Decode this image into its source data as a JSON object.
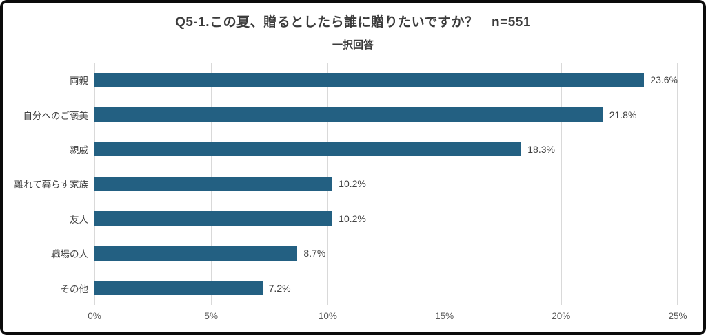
{
  "header": {
    "title": "Q5-1.この夏、贈るとしたら誰に贈りたいですか？　n=551",
    "subtitle": "一択回答"
  },
  "chart_data": {
    "type": "bar",
    "orientation": "horizontal",
    "title": "Q5-1.この夏、贈るとしたら誰に贈りたいですか？　n=551",
    "subtitle": "一択回答",
    "sample_size": "n=551",
    "categories": [
      "両親",
      "自分へのご褒美",
      "親戚",
      "離れて暮らす家族",
      "友人",
      "職場の人",
      "その他"
    ],
    "values": [
      23.6,
      21.8,
      18.3,
      10.2,
      10.2,
      8.7,
      7.2
    ],
    "value_labels": [
      "23.6%",
      "21.8%",
      "18.3%",
      "10.2%",
      "10.2%",
      "8.7%",
      "7.2%"
    ],
    "xlabel": "",
    "ylabel": "",
    "xlim": [
      0,
      25
    ],
    "x_ticks": [
      "0%",
      "5%",
      "10%",
      "15%",
      "20%",
      "25%"
    ],
    "x_tick_positions": [
      0,
      20,
      40,
      60,
      80,
      100
    ],
    "grid": "vertical",
    "legend": "none",
    "bar_color": "#236082",
    "gridline_color": "#d9d9d9",
    "text_color": "#404040"
  }
}
